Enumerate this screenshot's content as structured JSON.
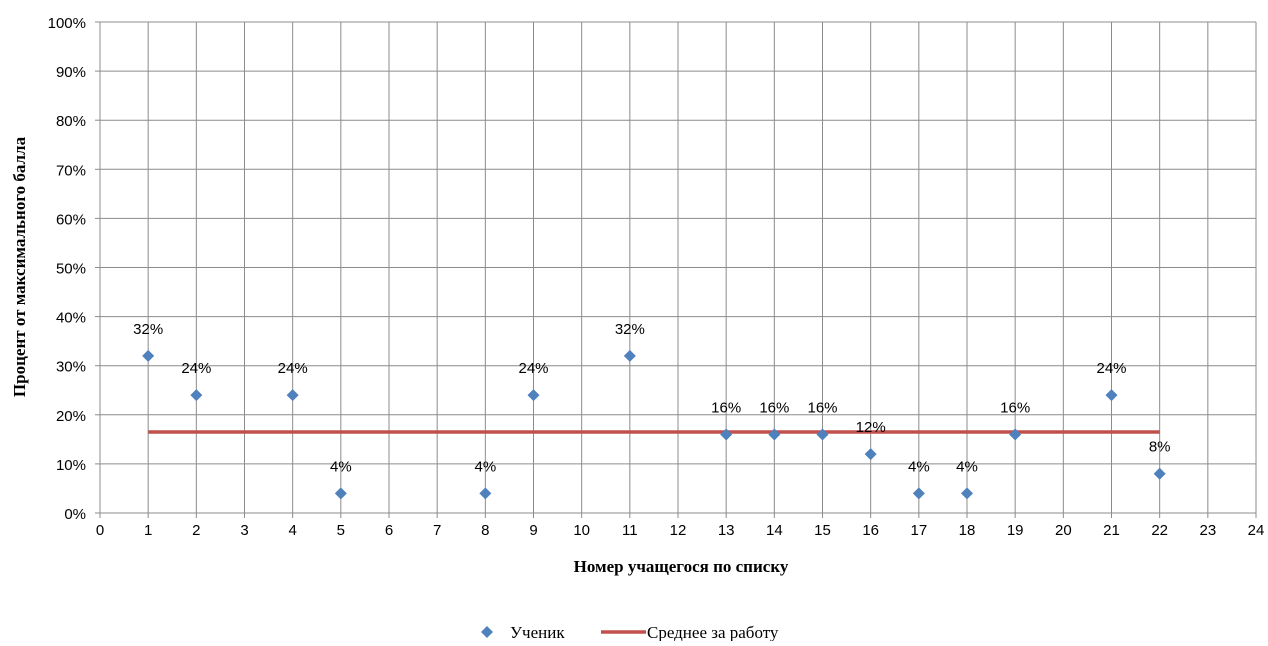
{
  "chart_data": {
    "type": "scatter",
    "xlabel": "Номер учащегося по списку",
    "ylabel": "Процент от максимального балла",
    "xlim": [
      0,
      24
    ],
    "ylim": [
      0,
      100
    ],
    "x_ticks": [
      0,
      1,
      2,
      3,
      4,
      5,
      6,
      7,
      8,
      9,
      10,
      11,
      12,
      13,
      14,
      15,
      16,
      17,
      18,
      19,
      20,
      21,
      22,
      23,
      24
    ],
    "y_ticks": [
      0,
      10,
      20,
      30,
      40,
      50,
      60,
      70,
      80,
      90,
      100
    ],
    "y_tick_suffix": "%",
    "grid": true,
    "legend_position": "bottom",
    "series": [
      {
        "name": "Ученик",
        "kind": "markers",
        "marker": "diamond",
        "color": "#4f81bd",
        "points": [
          {
            "x": 1,
            "y": 32,
            "label": "32%"
          },
          {
            "x": 2,
            "y": 24,
            "label": "24%"
          },
          {
            "x": 4,
            "y": 24,
            "label": "24%"
          },
          {
            "x": 5,
            "y": 4,
            "label": "4%"
          },
          {
            "x": 8,
            "y": 4,
            "label": "4%"
          },
          {
            "x": 9,
            "y": 24,
            "label": "24%"
          },
          {
            "x": 11,
            "y": 32,
            "label": "32%"
          },
          {
            "x": 13,
            "y": 16,
            "label": "16%"
          },
          {
            "x": 14,
            "y": 16,
            "label": "16%"
          },
          {
            "x": 15,
            "y": 16,
            "label": "16%"
          },
          {
            "x": 16,
            "y": 12,
            "label": "12%"
          },
          {
            "x": 17,
            "y": 4,
            "label": "4%"
          },
          {
            "x": 18,
            "y": 4,
            "label": "4%"
          },
          {
            "x": 19,
            "y": 16,
            "label": "16%"
          },
          {
            "x": 21,
            "y": 24,
            "label": "24%"
          },
          {
            "x": 22,
            "y": 8,
            "label": "8%"
          }
        ]
      },
      {
        "name": "Среднее за работу",
        "kind": "line",
        "color": "#c0504d",
        "points": [
          {
            "x": 1,
            "y": 16.5
          },
          {
            "x": 22,
            "y": 16.5
          }
        ]
      }
    ]
  }
}
